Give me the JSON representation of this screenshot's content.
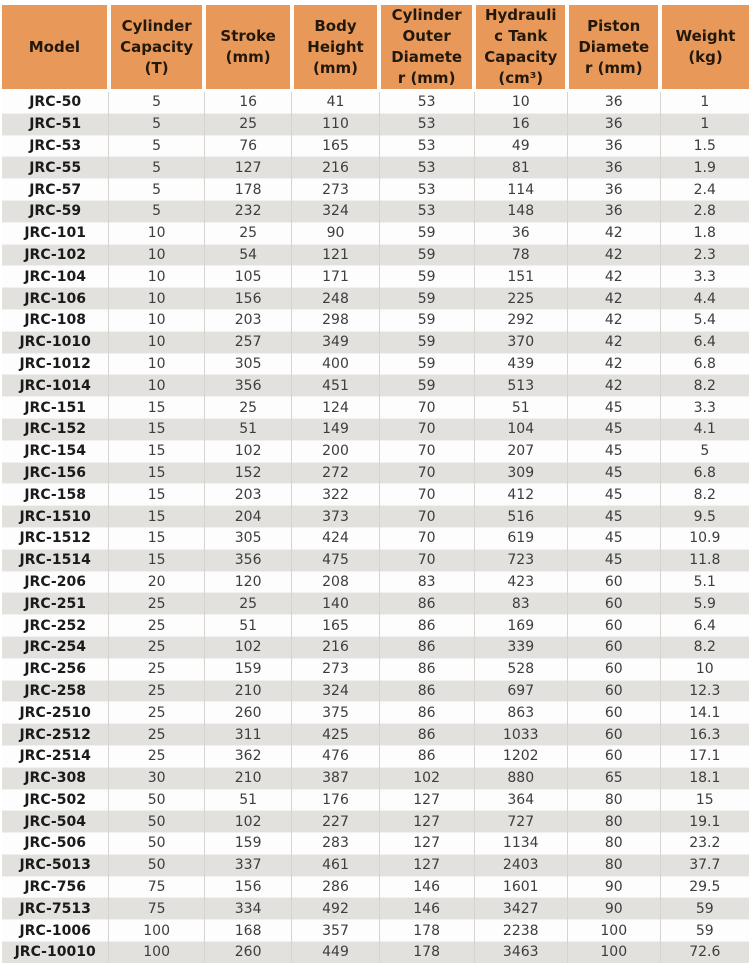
{
  "colors": {
    "header_background": "#e8995a",
    "header_text": "#23180c",
    "row_stripe": "#e3e1de",
    "row_plain": "#fdfdfd",
    "cell_text": "#3d3d3d"
  },
  "table": {
    "columns": [
      "Model",
      "Cylinder Capacity (T)",
      "Stroke (mm)",
      "Body Height (mm)",
      "Cylinder Outer Diameter (mm)",
      "Hydraulic Tank Capacity (cm³)",
      "Piston Diameter (mm)",
      "Weight (kg)"
    ],
    "rows": [
      [
        "JRC-50",
        "5",
        "16",
        "41",
        "53",
        "10",
        "36",
        "1"
      ],
      [
        "JRC-51",
        "5",
        "25",
        "110",
        "53",
        "16",
        "36",
        "1"
      ],
      [
        "JRC-53",
        "5",
        "76",
        "165",
        "53",
        "49",
        "36",
        "1.5"
      ],
      [
        "JRC-55",
        "5",
        "127",
        "216",
        "53",
        "81",
        "36",
        "1.9"
      ],
      [
        "JRC-57",
        "5",
        "178",
        "273",
        "53",
        "114",
        "36",
        "2.4"
      ],
      [
        "JRC-59",
        "5",
        "232",
        "324",
        "53",
        "148",
        "36",
        "2.8"
      ],
      [
        "JRC-101",
        "10",
        "25",
        "90",
        "59",
        "36",
        "42",
        "1.8"
      ],
      [
        "JRC-102",
        "10",
        "54",
        "121",
        "59",
        "78",
        "42",
        "2.3"
      ],
      [
        "JRC-104",
        "10",
        "105",
        "171",
        "59",
        "151",
        "42",
        "3.3"
      ],
      [
        "JRC-106",
        "10",
        "156",
        "248",
        "59",
        "225",
        "42",
        "4.4"
      ],
      [
        "JRC-108",
        "10",
        "203",
        "298",
        "59",
        "292",
        "42",
        "5.4"
      ],
      [
        "JRC-1010",
        "10",
        "257",
        "349",
        "59",
        "370",
        "42",
        "6.4"
      ],
      [
        "JRC-1012",
        "10",
        "305",
        "400",
        "59",
        "439",
        "42",
        "6.8"
      ],
      [
        "JRC-1014",
        "10",
        "356",
        "451",
        "59",
        "513",
        "42",
        "8.2"
      ],
      [
        "JRC-151",
        "15",
        "25",
        "124",
        "70",
        "51",
        "45",
        "3.3"
      ],
      [
        "JRC-152",
        "15",
        "51",
        "149",
        "70",
        "104",
        "45",
        "4.1"
      ],
      [
        "JRC-154",
        "15",
        "102",
        "200",
        "70",
        "207",
        "45",
        "5"
      ],
      [
        "JRC-156",
        "15",
        "152",
        "272",
        "70",
        "309",
        "45",
        "6.8"
      ],
      [
        "JRC-158",
        "15",
        "203",
        "322",
        "70",
        "412",
        "45",
        "8.2"
      ],
      [
        "JRC-1510",
        "15",
        "204",
        "373",
        "70",
        "516",
        "45",
        "9.5"
      ],
      [
        "JRC-1512",
        "15",
        "305",
        "424",
        "70",
        "619",
        "45",
        "10.9"
      ],
      [
        "JRC-1514",
        "15",
        "356",
        "475",
        "70",
        "723",
        "45",
        "11.8"
      ],
      [
        "JRC-206",
        "20",
        "120",
        "208",
        "83",
        "423",
        "60",
        "5.1"
      ],
      [
        "JRC-251",
        "25",
        "25",
        "140",
        "86",
        "83",
        "60",
        "5.9"
      ],
      [
        "JRC-252",
        "25",
        "51",
        "165",
        "86",
        "169",
        "60",
        "6.4"
      ],
      [
        "JRC-254",
        "25",
        "102",
        "216",
        "86",
        "339",
        "60",
        "8.2"
      ],
      [
        "JRC-256",
        "25",
        "159",
        "273",
        "86",
        "528",
        "60",
        "10"
      ],
      [
        "JRC-258",
        "25",
        "210",
        "324",
        "86",
        "697",
        "60",
        "12.3"
      ],
      [
        "JRC-2510",
        "25",
        "260",
        "375",
        "86",
        "863",
        "60",
        "14.1"
      ],
      [
        "JRC-2512",
        "25",
        "311",
        "425",
        "86",
        "1033",
        "60",
        "16.3"
      ],
      [
        "JRC-2514",
        "25",
        "362",
        "476",
        "86",
        "1202",
        "60",
        "17.1"
      ],
      [
        "JRC-308",
        "30",
        "210",
        "387",
        "102",
        "880",
        "65",
        "18.1"
      ],
      [
        "JRC-502",
        "50",
        "51",
        "176",
        "127",
        "364",
        "80",
        "15"
      ],
      [
        "JRC-504",
        "50",
        "102",
        "227",
        "127",
        "727",
        "80",
        "19.1"
      ],
      [
        "JRC-506",
        "50",
        "159",
        "283",
        "127",
        "1134",
        "80",
        "23.2"
      ],
      [
        "JRC-5013",
        "50",
        "337",
        "461",
        "127",
        "2403",
        "80",
        "37.7"
      ],
      [
        "JRC-756",
        "75",
        "156",
        "286",
        "146",
        "1601",
        "90",
        "29.5"
      ],
      [
        "JRC-7513",
        "75",
        "334",
        "492",
        "146",
        "3427",
        "90",
        "59"
      ],
      [
        "JRC-1006",
        "100",
        "168",
        "357",
        "178",
        "2238",
        "100",
        "59"
      ],
      [
        "JRC-10010",
        "100",
        "260",
        "449",
        "178",
        "3463",
        "100",
        "72.6"
      ]
    ]
  }
}
